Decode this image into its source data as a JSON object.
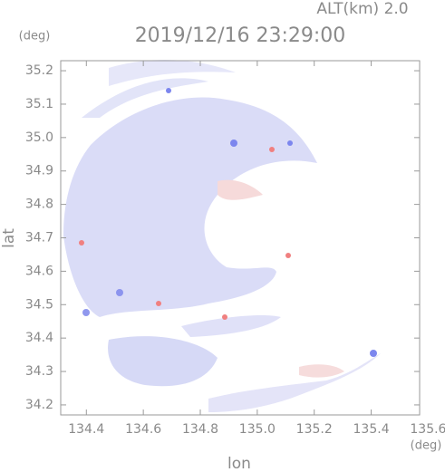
{
  "chart_data": {
    "type": "radar-map",
    "title": "2019/12/16 23:29:00",
    "subtitle": "ALT(km) 2.0",
    "x_label": "lon",
    "x_unit": "(deg)",
    "y_label": "lat",
    "y_unit": "(deg)",
    "xlim": [
      134.31,
      135.57
    ],
    "xticks": [
      134.4,
      134.6,
      134.8,
      {
        "value": 135,
        "label": "135.0"
      },
      135.2,
      135.4,
      135.6
    ],
    "ylim": [
      34.17,
      35.23
    ],
    "yticks": [
      34.2,
      34.3,
      34.4,
      34.5,
      34.6,
      34.7,
      34.8,
      34.9,
      {
        "value": 35,
        "label": "35.0"
      },
      35.1,
      35.2
    ]
  }
}
